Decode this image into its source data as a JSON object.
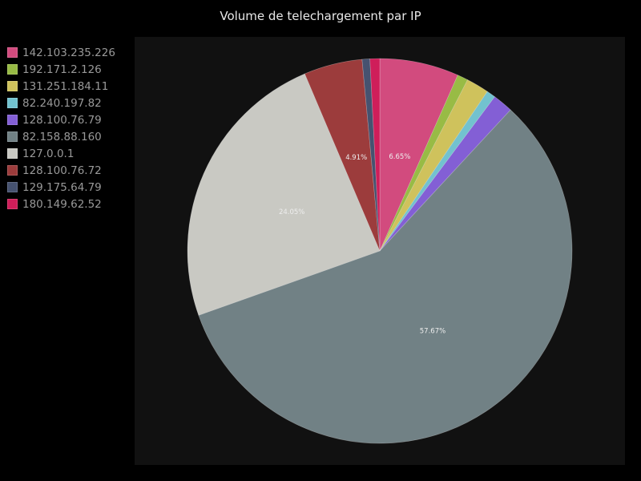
{
  "chart_data": {
    "type": "pie",
    "title": "Volume de telechargement par IP",
    "legend_position": "left",
    "slices": [
      {
        "label": "142.103.235.226",
        "value": 6.65,
        "color": "#d24b7e",
        "data_label": "6.65%"
      },
      {
        "label": "192.171.2.126",
        "value": 0.9,
        "color": "#98bb45"
      },
      {
        "label": "131.251.184.11",
        "value": 1.9,
        "color": "#cfc25c"
      },
      {
        "label": "82.240.197.82",
        "value": 0.75,
        "color": "#72c2cf"
      },
      {
        "label": "128.100.76.79",
        "value": 1.7,
        "color": "#835fd5"
      },
      {
        "label": "82.158.88.160",
        "value": 57.67,
        "color": "#718185",
        "data_label": "57.67%"
      },
      {
        "label": "127.0.0.1",
        "value": 24.05,
        "color": "#c9c9c3",
        "data_label": "24.05%"
      },
      {
        "label": "128.100.76.72",
        "value": 4.91,
        "color": "#9c3c3c",
        "data_label": "4.91%"
      },
      {
        "label": "129.175.64.79",
        "value": 0.65,
        "color": "#465270"
      },
      {
        "label": "180.149.62.52",
        "value": 0.82,
        "color": "#cf1e5a"
      }
    ]
  }
}
